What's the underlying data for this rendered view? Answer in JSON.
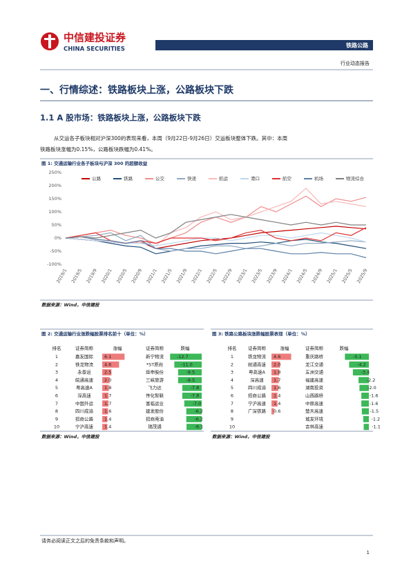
{
  "header": {
    "brand": "中信建投证券",
    "brand_en": "CHINA SECURITIES",
    "tag": "铁路公路",
    "report_type": "行业动态报告"
  },
  "section_title": "一、行情综述：铁路板块上涨，公路板块下跌",
  "subsection_title": "1.1 A 股市场：铁路板块上涨，公路板块下跌",
  "paragraph": [
    "从交运各子板块相对沪深300的表现来看，本周（9月22日-9月26日）交运板块整体下跌。其中：本周",
    "铁路板块涨幅为0.15%，公路板块跌幅为0.41%。"
  ],
  "figure1": {
    "title": "图 1: 交通运输行业各子板块与沪深 300 的超额收益",
    "source": "数据来源：Wind，中信建投"
  },
  "chart_data": {
    "type": "line",
    "categories": [
      "2019/1",
      "2019/5",
      "2019/9",
      "2020/1",
      "2020/5",
      "2020/9",
      "2021/1",
      "2021/5",
      "2021/9",
      "2022/1",
      "2022/5",
      "2022/9",
      "2023/1",
      "2023/5",
      "2023/9",
      "2024/1",
      "2024/5",
      "2024/9",
      "2025/1",
      "2025/5",
      "2025/9"
    ],
    "series": [
      {
        "name": "公路",
        "color": "#c00000",
        "values": [
          0,
          -5,
          -10,
          -15,
          -20,
          -15,
          -40,
          -30,
          -20,
          -10,
          -5,
          0,
          10,
          20,
          25,
          30,
          35,
          40,
          45,
          40,
          35
        ]
      },
      {
        "name": "铁路",
        "color": "#1f4e79",
        "values": [
          0,
          -5,
          -10,
          -20,
          -30,
          -35,
          -60,
          -50,
          -40,
          -30,
          -25,
          -20,
          -20,
          -15,
          -20,
          -10,
          -5,
          -15,
          -20,
          -30,
          -40
        ]
      },
      {
        "name": "公交",
        "color": "#f08c8c",
        "values": [
          0,
          10,
          20,
          30,
          10,
          0,
          -20,
          0,
          20,
          60,
          80,
          60,
          80,
          120,
          100,
          130,
          160,
          120,
          150,
          140,
          155
        ]
      },
      {
        "name": "快递",
        "color": "#8ea9c1",
        "values": [
          0,
          5,
          10,
          20,
          -10,
          10,
          -40,
          -50,
          -40,
          -40,
          -30,
          -30,
          -40,
          -30,
          -20,
          -30,
          -20,
          -20,
          -15,
          -10,
          -15
        ]
      },
      {
        "name": "航运",
        "color": "#f7b8b8",
        "values": [
          0,
          5,
          -5,
          -10,
          -20,
          -15,
          -30,
          20,
          40,
          80,
          100,
          70,
          80,
          100,
          120,
          140,
          190,
          130,
          140,
          130,
          120
        ]
      },
      {
        "name": "港口",
        "color": "#bdd7ee",
        "values": [
          0,
          -5,
          -10,
          -15,
          -20,
          -20,
          -30,
          -20,
          -10,
          0,
          0,
          -10,
          0,
          10,
          10,
          0,
          10,
          20,
          10,
          0,
          -15
        ]
      },
      {
        "name": "航空",
        "color": "#e03030",
        "values": [
          0,
          10,
          20,
          -10,
          -20,
          -10,
          -20,
          0,
          0,
          0,
          -10,
          0,
          20,
          30,
          0,
          -10,
          0,
          -10,
          20,
          10,
          40
        ]
      },
      {
        "name": "机场",
        "color": "#5b7fa6",
        "values": [
          0,
          5,
          -5,
          -10,
          -20,
          -10,
          -40,
          -40,
          -50,
          -50,
          -60,
          -50,
          -40,
          -40,
          -50,
          -60,
          -60,
          -55,
          -60,
          -60,
          -75
        ]
      },
      {
        "name": "物流综合",
        "color": "#7f7f7f",
        "values": [
          0,
          5,
          0,
          10,
          20,
          30,
          0,
          20,
          60,
          70,
          80,
          90,
          80,
          70,
          60,
          50,
          60,
          50,
          60,
          50,
          50
        ]
      }
    ],
    "ylim": [
      -100,
      250
    ],
    "yticks": [
      {
        "value": -100,
        "label": "-100%"
      },
      {
        "value": -50,
        "label": "-50%"
      },
      {
        "value": 0,
        "label": "0%"
      },
      {
        "value": 50,
        "label": "50%"
      },
      {
        "value": 100,
        "label": "100%"
      },
      {
        "value": 150,
        "label": "150%"
      },
      {
        "value": 200,
        "label": "200%"
      },
      {
        "value": 250,
        "label": "250%"
      }
    ]
  },
  "table2": {
    "title": "图 2: 交通运输行业涨跌幅股票排名前十（单位：%）",
    "source": "数据来源：Wind，中信建投",
    "columns": [
      "排名",
      "证券简称",
      "涨幅",
      "证券简称",
      "跌幅"
    ],
    "rows": [
      [
        "1",
        "嘉友国际",
        "6.1",
        "新宁物流",
        "-12.7"
      ],
      [
        "2",
        "铁龙物流",
        "4.6",
        "*ST原尚",
        "-11.0"
      ],
      [
        "3",
        "永泰运",
        "2.5",
        "炬申股份",
        "-9.5"
      ],
      [
        "4",
        "皖通高速",
        "2.0",
        "三峡旅游",
        "-9.5"
      ],
      [
        "5",
        "粤高速A",
        "1.8",
        "飞力达",
        "-7.8"
      ],
      [
        "6",
        "深高速",
        "1.7",
        "传化智联",
        "-7.8"
      ],
      [
        "7",
        "中国外运",
        "1.7",
        "富临运业",
        "-7.0"
      ],
      [
        "8",
        "四川成渝",
        "1.6",
        "建发股份",
        "-6.2"
      ],
      [
        "9",
        "招商公路",
        "1.4",
        "招商南油",
        "-6.2"
      ],
      [
        "10",
        "宁沪高速",
        "1.4",
        "瑞茂通",
        "-6.1"
      ]
    ]
  },
  "table3": {
    "title": "图 3: 铁路公路板块涨跌幅股票表现（单位：%）",
    "source": "数据来源：Wind，中信建投",
    "columns": [
      "排名",
      "证券简称",
      "涨幅",
      "证券简称",
      "跌幅"
    ],
    "rows": [
      [
        "1",
        "铁龙物流",
        "4.6",
        "重庆路桥",
        "-5.1"
      ],
      [
        "2",
        "皖通高速",
        "2.0",
        "龙江交通",
        "-4.2"
      ],
      [
        "3",
        "粤高速A",
        "1.8",
        "五洲交通",
        "-3.4"
      ],
      [
        "4",
        "深高速",
        "1.7",
        "福建高速",
        "-2.2"
      ],
      [
        "5",
        "四川成渝",
        "1.6",
        "湖南投资",
        "-2.0"
      ],
      [
        "6",
        "招商公路",
        "1.4",
        "山西路桥",
        "-1.6"
      ],
      [
        "7",
        "宁沪高速",
        "1.4",
        "中原高速",
        "-1.6"
      ],
      [
        "8",
        "广深铁路",
        "0.6",
        "楚天高速",
        "-1.5"
      ],
      [
        "9",
        null,
        null,
        "城发环境",
        "-1.2"
      ],
      [
        "10",
        null,
        null,
        "吉林高速",
        "-1.1"
      ]
    ]
  },
  "footer": {
    "disclaimer": "请务必阅读正文之后的免责条款和声明。",
    "page": "1"
  }
}
